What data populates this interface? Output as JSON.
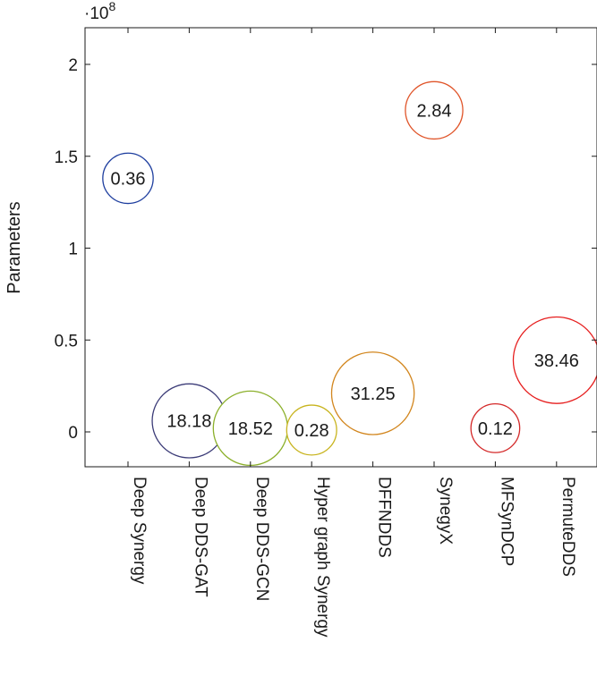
{
  "chart_data": {
    "type": "scatter",
    "title": "",
    "xlabel": "",
    "ylabel": "Parameters",
    "y_exponent_label": "·10",
    "y_exponent_power": "8",
    "ylim": [
      -0.2,
      2.2
    ],
    "yticks": [
      0,
      0.5,
      1,
      1.5,
      2
    ],
    "ytick_labels": [
      "0",
      "0.5",
      "1",
      "1.5",
      "2"
    ],
    "grid": false,
    "legend": "none",
    "points": [
      {
        "category": "Deep Synergy",
        "y": 1.38,
        "label": "0.36",
        "size": 0.36,
        "color": "#1f3f9f"
      },
      {
        "category": "Deep DDS-GAT",
        "y": 0.06,
        "label": "18.18",
        "size": 18.18,
        "color": "#3c3c78"
      },
      {
        "category": "Deep DDS-GCN",
        "y": 0.02,
        "label": "18.52",
        "size": 18.52,
        "color": "#8cb02c"
      },
      {
        "category": "Hyper graph Synergy",
        "y": 0.01,
        "label": "0.28",
        "size": 0.28,
        "color": "#c8b41e"
      },
      {
        "category": "DFFNDDS",
        "y": 0.21,
        "label": "31.25",
        "size": 31.25,
        "color": "#d2861e"
      },
      {
        "category": "SynegyX",
        "y": 1.75,
        "label": "2.84",
        "size": 2.84,
        "color": "#e0552a"
      },
      {
        "category": "MFSynDCP",
        "y": 0.02,
        "label": "0.12",
        "size": 0.12,
        "color": "#d42a2a"
      },
      {
        "category": "PermuteDDS",
        "y": 0.39,
        "label": "38.46",
        "size": 38.46,
        "color": "#e61e1e"
      }
    ]
  }
}
